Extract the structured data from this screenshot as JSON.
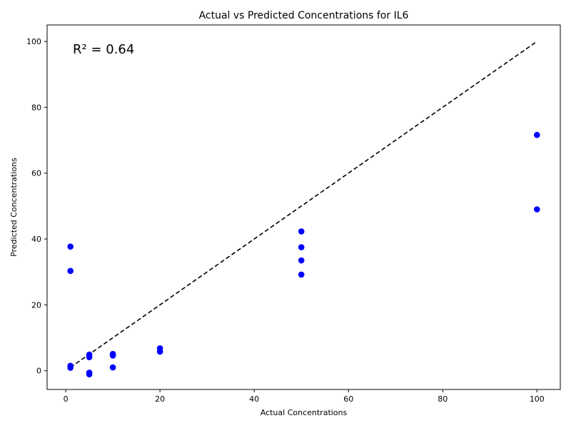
{
  "chart_data": {
    "type": "scatter",
    "title": "Actual vs Predicted Concentrations for IL6",
    "xlabel": "Actual Concentrations",
    "ylabel": "Predicted Concentrations",
    "annotation": "R² = 0.64",
    "xlim": [
      -3.95,
      104.95
    ],
    "ylim": [
      -5.7,
      105.0
    ],
    "xticks": [
      0,
      20,
      40,
      60,
      80,
      100
    ],
    "yticks": [
      0,
      20,
      40,
      60,
      80,
      100
    ],
    "grid": false,
    "series": [
      {
        "color": "#0000ff",
        "points": [
          {
            "x": 1,
            "y": 37.7
          },
          {
            "x": 1,
            "y": 30.3
          },
          {
            "x": 1,
            "y": 1.5
          },
          {
            "x": 1,
            "y": 0.9
          },
          {
            "x": 5,
            "y": 4.9
          },
          {
            "x": 5,
            "y": 4.1
          },
          {
            "x": 5,
            "y": -0.6
          },
          {
            "x": 5,
            "y": -1.1
          },
          {
            "x": 10,
            "y": 5.1
          },
          {
            "x": 10,
            "y": 4.6
          },
          {
            "x": 10,
            "y": 1.0
          },
          {
            "x": 20,
            "y": 6.8
          },
          {
            "x": 20,
            "y": 5.8
          },
          {
            "x": 50,
            "y": 42.3
          },
          {
            "x": 50,
            "y": 37.5
          },
          {
            "x": 50,
            "y": 33.5
          },
          {
            "x": 50,
            "y": 29.2
          },
          {
            "x": 100,
            "y": 71.6
          },
          {
            "x": 100,
            "y": 49.0
          }
        ]
      }
    ],
    "reference_line": {
      "style": "dashed",
      "color": "#000000",
      "from": [
        1,
        1
      ],
      "to": [
        100,
        100
      ]
    }
  }
}
